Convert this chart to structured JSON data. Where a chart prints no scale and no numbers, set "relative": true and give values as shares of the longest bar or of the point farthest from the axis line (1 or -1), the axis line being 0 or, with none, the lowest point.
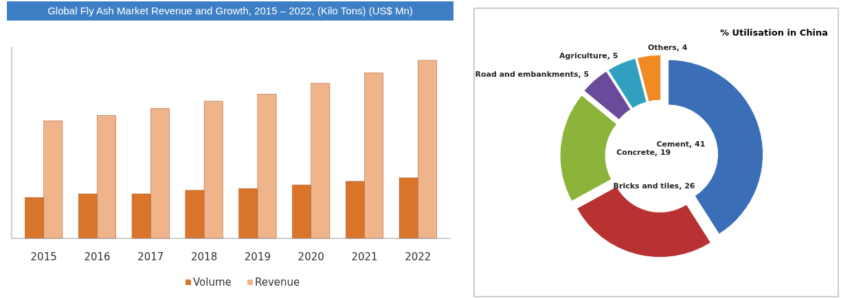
{
  "chart_data": [
    {
      "type": "bar",
      "title": "Global Fly Ash Market Revenue and Growth, 2015 – 2022, (Kilo Tons) (US$ Mn)",
      "relative": true,
      "categories": [
        "2015",
        "2016",
        "2017",
        "2018",
        "2019",
        "2020",
        "2021",
        "2022"
      ],
      "series": [
        {
          "name": "Volume",
          "color": "#d9742a",
          "values": [
            0.23,
            0.25,
            0.25,
            0.27,
            0.28,
            0.3,
            0.32,
            0.34
          ]
        },
        {
          "name": "Revenue",
          "color": "#f0b48a",
          "values": [
            0.66,
            0.69,
            0.73,
            0.77,
            0.81,
            0.87,
            0.93,
            1
          ]
        }
      ],
      "legend": "bottom",
      "grid": false
    },
    {
      "type": "donut",
      "title": "% Utilisation in China",
      "categories": [
        "Cement, 41",
        "Bricks and tiles, 26",
        "Concrete, 19",
        "Road and embankments, 5",
        "Agriculture, 5",
        "Others, 4"
      ],
      "values": [
        41,
        26,
        19,
        5,
        5,
        4
      ],
      "colors": [
        "#3a6fb8",
        "#b83232",
        "#8cb33a",
        "#6a4a9a",
        "#31a0c0",
        "#f08a24"
      ]
    }
  ]
}
